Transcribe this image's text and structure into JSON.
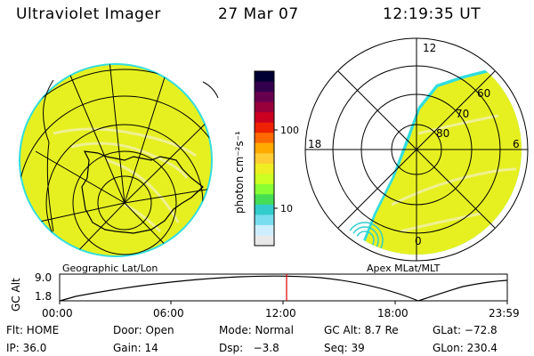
{
  "header": {
    "title": "Ultraviolet Imager",
    "date": "27 Mar 07",
    "time": "12:19:35 UT"
  },
  "colorbar": {
    "label": "photon cm⁻²s⁻¹",
    "ticks": [
      "100",
      "10"
    ],
    "colors": [
      "#000033",
      "#33004d",
      "#66004d",
      "#99003b",
      "#cc0020",
      "#ee2200",
      "#ff6a00",
      "#ffaa00",
      "#ffcc33",
      "#eeee22",
      "#ccff22",
      "#88ff33",
      "#44dd55",
      "#33cccc",
      "#77ddee",
      "#cceeff",
      "#e8e8e8"
    ]
  },
  "panels": {
    "left_label": "Geographic Lat/Lon",
    "right_label": "Apex MLat/MLT",
    "right_mlt_labels": [
      "12",
      "6",
      "0",
      "18"
    ],
    "right_lat_labels": [
      "60",
      "70",
      "80"
    ],
    "fill_color": "#e6f020"
  },
  "altitude_plot": {
    "ylabel": "GC Alt",
    "yticks": [
      "9.0",
      "1.8"
    ],
    "xticks": [
      "00:00",
      "06:00",
      "12:00",
      "18:00",
      "23:59"
    ],
    "marker_color": "#dd0000"
  },
  "info": {
    "row1": [
      "Flt: HOME",
      "Door: Open",
      "Mode: Normal",
      "GC Alt: 8.7 Re",
      "GLat: −72.8"
    ],
    "row2": [
      "IP: 36.0",
      "Gain: 14",
      "Dsp:   −3.8",
      "Seq: 39",
      "GLon: 230.4"
    ]
  }
}
